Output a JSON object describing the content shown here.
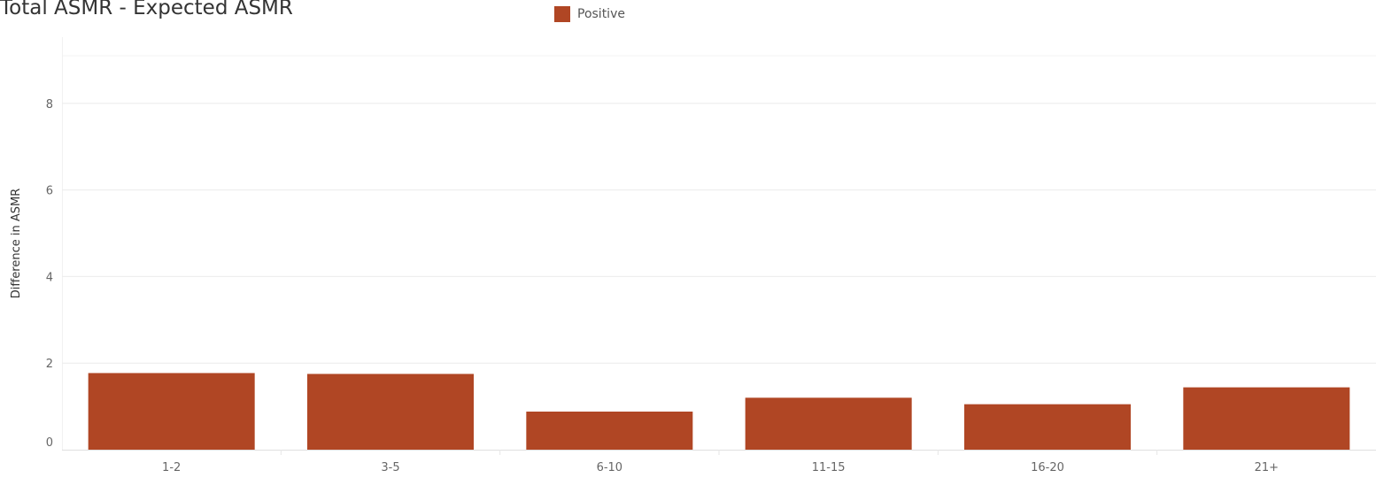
{
  "chart_data": {
    "type": "bar",
    "title": "Total ASMR - Expected ASMR",
    "xlabel": "",
    "ylabel": "Difference in ASMR",
    "categories": [
      "1-2",
      "3-5",
      "6-10",
      "11-15",
      "16-20",
      "21+"
    ],
    "series": [
      {
        "name": "Positive",
        "values": [
          1.77,
          1.75,
          0.88,
          1.2,
          1.05,
          1.44
        ],
        "color": "#b04624"
      }
    ],
    "ylim": [
      0,
      9
    ],
    "yticks": [
      0,
      2,
      4,
      6,
      8
    ],
    "grid": true,
    "legend_position": "top-center"
  }
}
